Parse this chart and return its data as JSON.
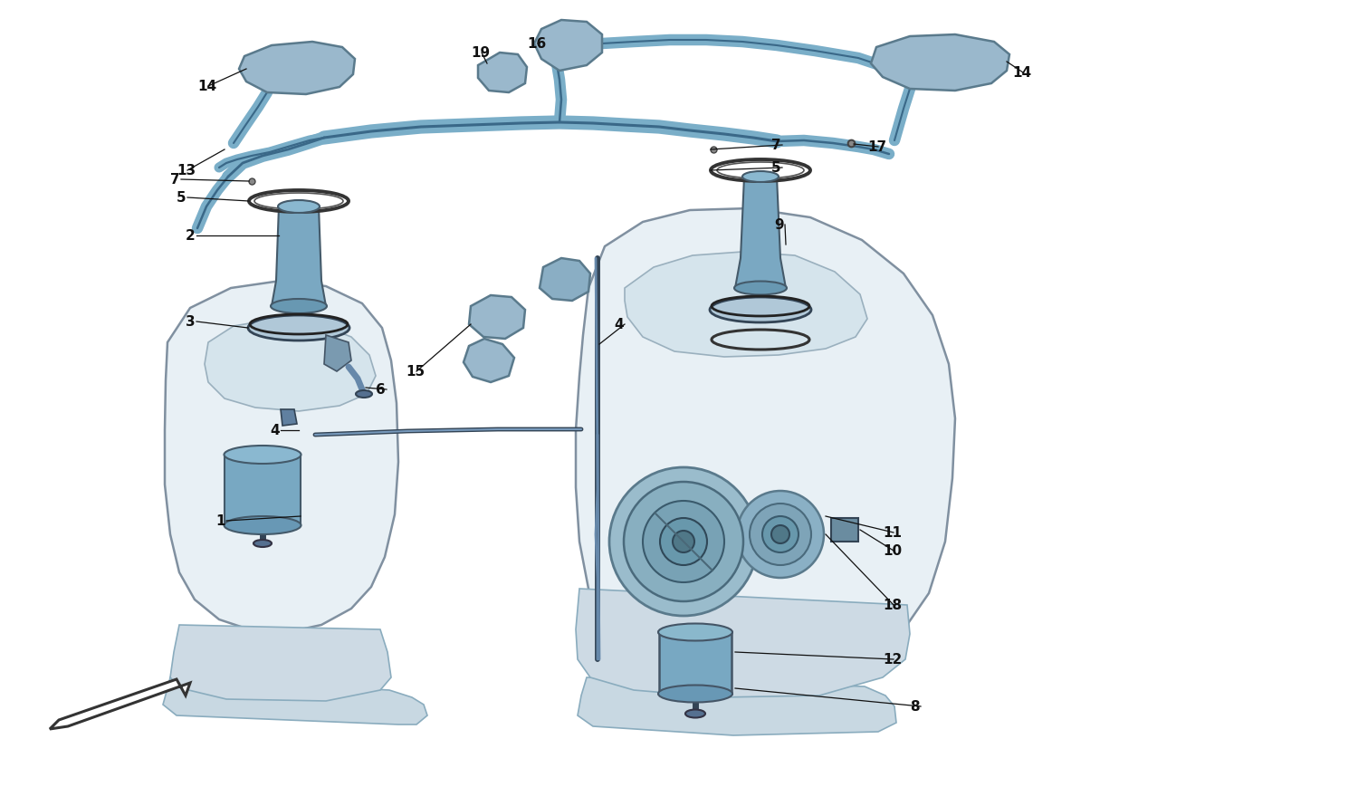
{
  "bg_color": "#ffffff",
  "line_color": "#555555",
  "blue_fill": "#8ab2c8",
  "blue_mid": "#6a98b2",
  "blue_light": "#b8d0de",
  "blue_dark": "#4a7890",
  "tank_fill": "#e8f0f5",
  "tank_edge": "#8090a0",
  "gray_fill": "#c8d5de",
  "label_color": "#111111",
  "fs": 11,
  "leader_lw": 0.9,
  "pipe_blue": "#7aaec8",
  "pipe_blue_dark": "#3a6888"
}
